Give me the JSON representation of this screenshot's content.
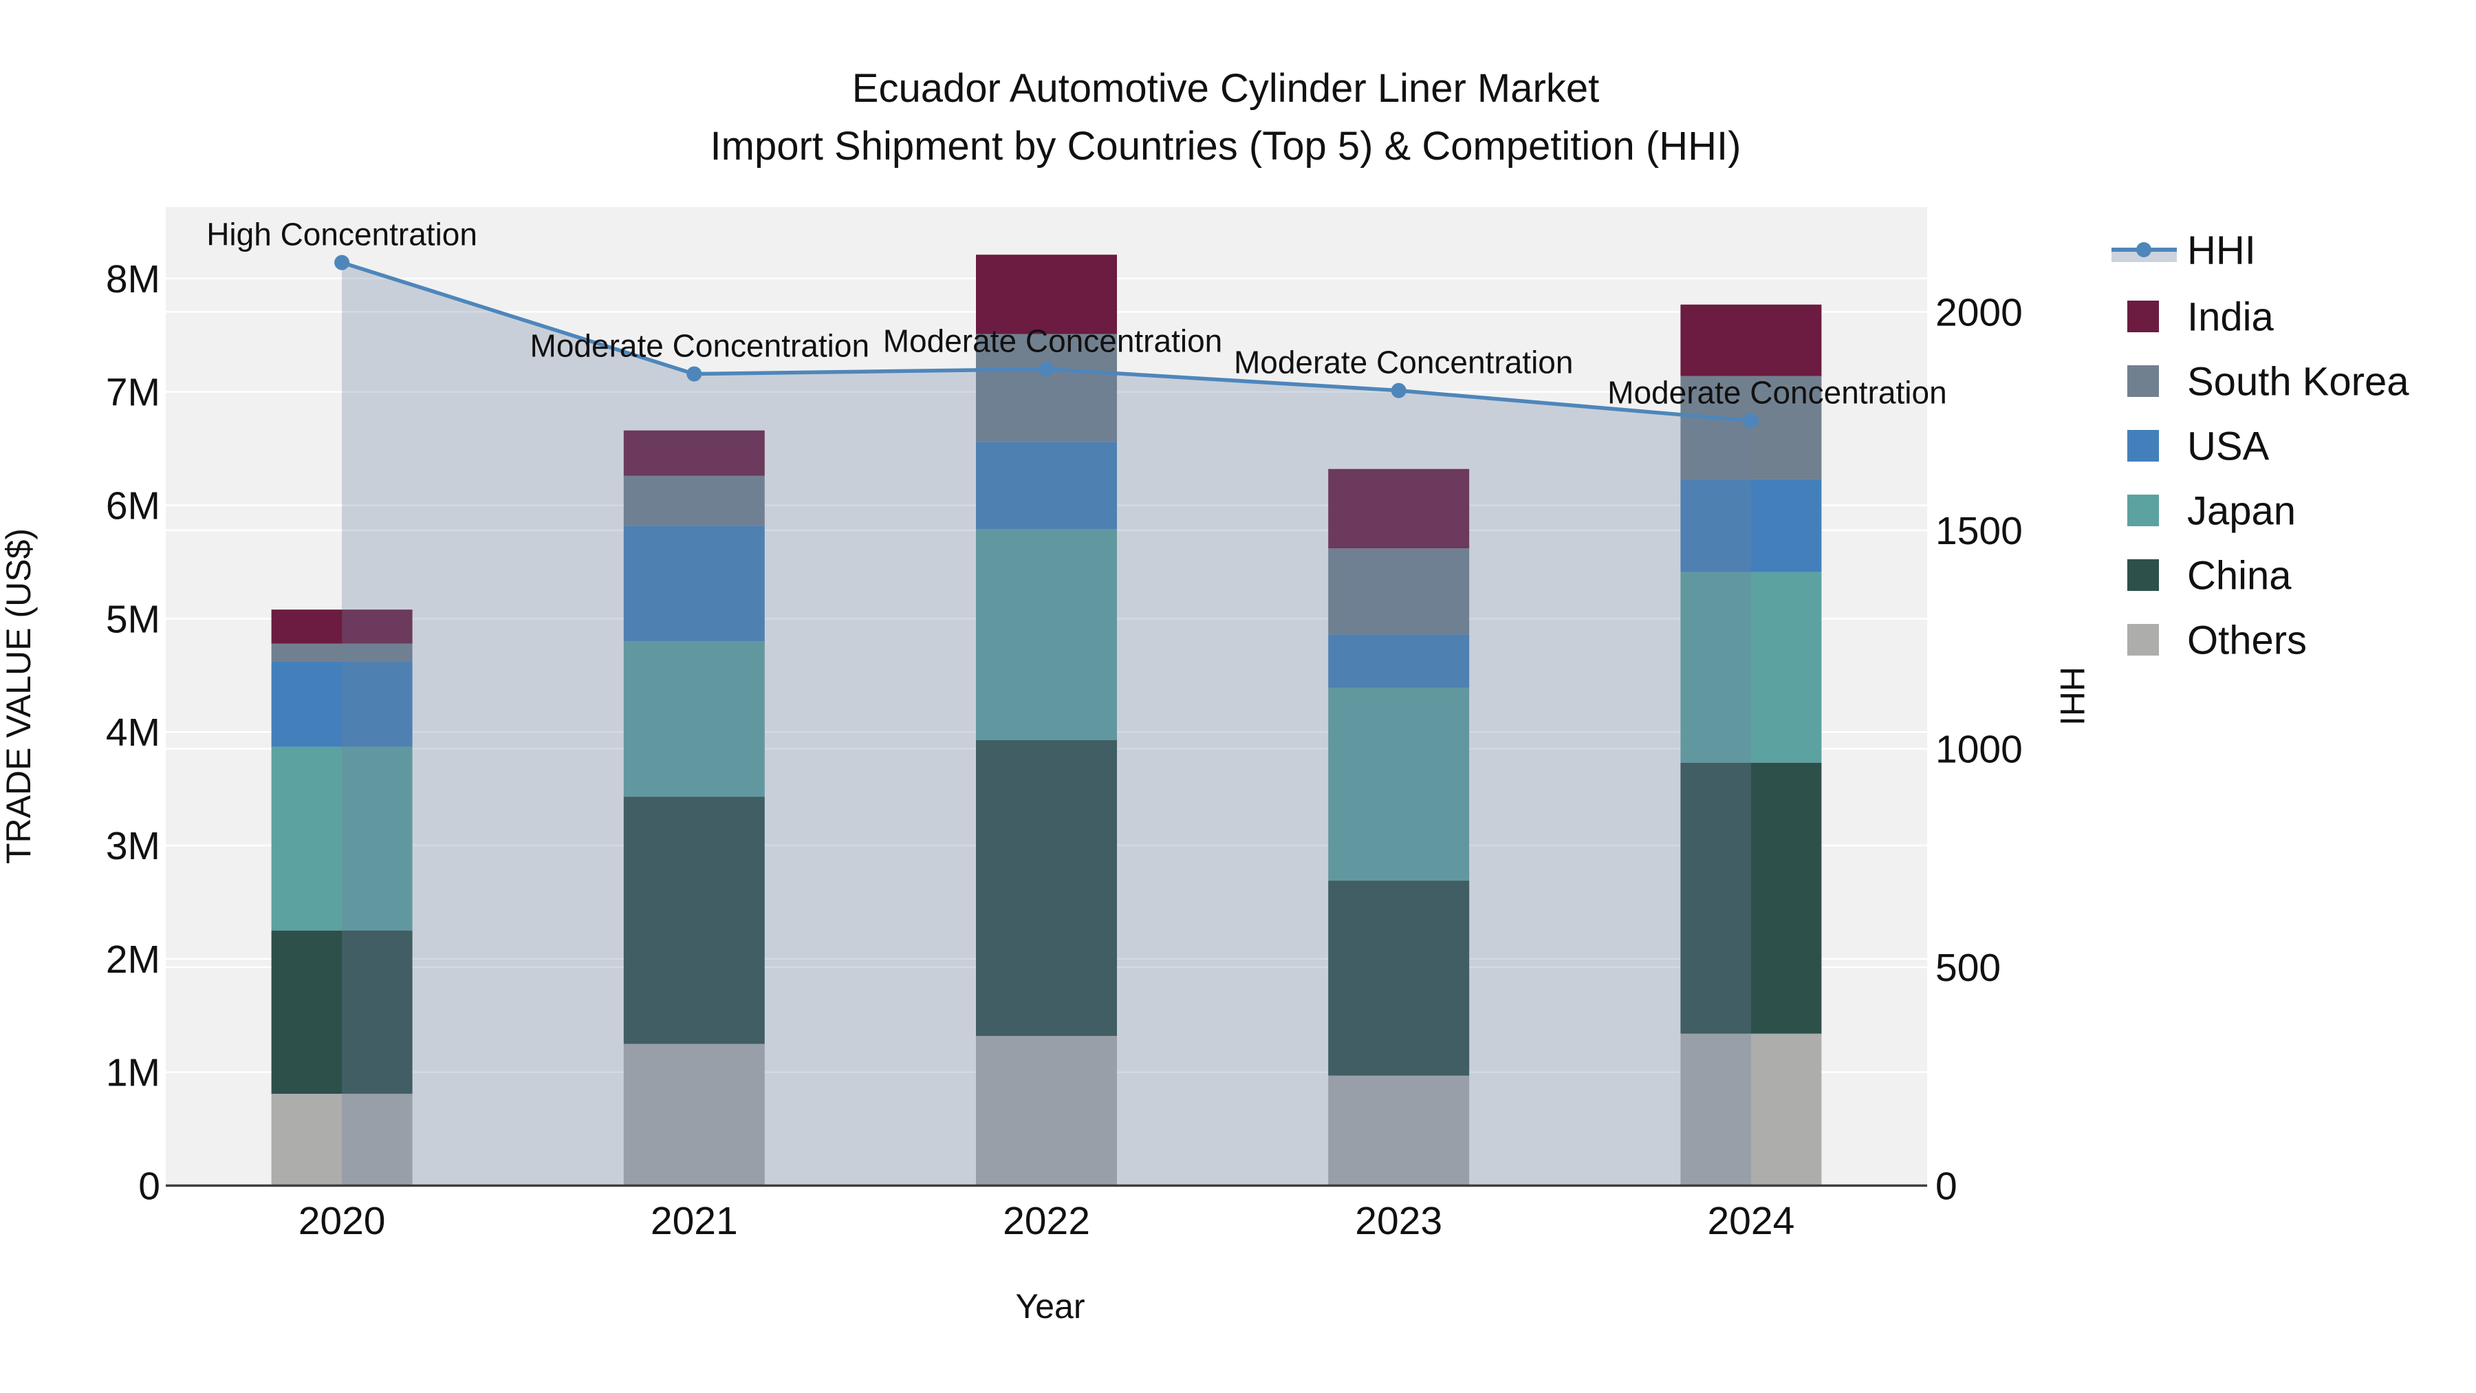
{
  "title": {
    "line1": "Ecuador Automotive Cylinder Liner Market",
    "line2": "Import Shipment by Countries (Top 5) & Competition (HHI)"
  },
  "axes": {
    "x": {
      "title": "Year",
      "ticks": [
        "2020",
        "2021",
        "2022",
        "2023",
        "2024"
      ]
    },
    "y_left": {
      "title": "TRADE VALUE (US$)",
      "ticks": [
        "0",
        "1M",
        "2M",
        "3M",
        "4M",
        "5M",
        "6M",
        "7M",
        "8M"
      ]
    },
    "y_right": {
      "title": "HHI",
      "ticks": [
        "0",
        "500",
        "1000",
        "1500",
        "2000"
      ]
    }
  },
  "legend": {
    "line_item_label": "HHI"
  },
  "colors": {
    "figure_bg": "#FFFFFF",
    "plot_bg": "#F1F1F1",
    "grid": "#FFFFFF",
    "axis_line": "#3F3F3F",
    "text": "#111111",
    "hhi_line": "#4E86BB",
    "hhi_fill": "rgba(110,130,160,0.30)",
    "hhi_fill_legend": "#CCD3DC"
  },
  "chart_data": {
    "type": "bar",
    "stacked": true,
    "title": "Ecuador Automotive Cylinder Liner Market",
    "subtitle": "Import Shipment by Countries (Top 5) & Competition (HHI)",
    "xlabel": "Year",
    "ylabel_left": "TRADE VALUE (US$)",
    "ylabel_right": "HHI",
    "categories": [
      "2020",
      "2021",
      "2022",
      "2023",
      "2024"
    ],
    "values_unit": "million US$ (trade value, left axis)",
    "series": [
      {
        "name": "India",
        "color": "#6B1C40",
        "values": [
          0.3,
          0.4,
          0.7,
          0.7,
          0.63
        ]
      },
      {
        "name": "South Korea",
        "color": "#71808F",
        "values": [
          0.16,
          0.44,
          0.95,
          0.76,
          0.91
        ]
      },
      {
        "name": "USA",
        "color": "#4380BB",
        "values": [
          0.75,
          1.02,
          0.77,
          0.47,
          0.82
        ]
      },
      {
        "name": "Japan",
        "color": "#5CA2A0",
        "values": [
          1.62,
          1.37,
          1.86,
          1.7,
          1.68
        ]
      },
      {
        "name": "China",
        "color": "#2D504B",
        "values": [
          1.44,
          2.18,
          2.61,
          1.72,
          2.39
        ]
      },
      {
        "name": "Others",
        "color": "#ADADAC",
        "values": [
          0.81,
          1.25,
          1.32,
          0.97,
          1.34
        ]
      }
    ],
    "stack_totals": [
      5.08,
      6.66,
      8.21,
      6.32,
      7.77
    ],
    "line_series": {
      "name": "HHI",
      "axis": "right",
      "values": [
        2113,
        1858,
        1869,
        1820,
        1751
      ],
      "color": "#4E86BB",
      "fill_to_zero": true
    },
    "annotations": [
      {
        "x": "2020",
        "text": "High Concentration"
      },
      {
        "x": "2021",
        "text": "Moderate Concentration"
      },
      {
        "x": "2022",
        "text": "Moderate Concentration"
      },
      {
        "x": "2023",
        "text": "Moderate Concentration"
      },
      {
        "x": "2024",
        "text": "Moderate Concentration"
      }
    ],
    "y_left_range": [
      0,
      8630000
    ],
    "y_right_range": [
      0,
      2240
    ],
    "grid": true,
    "legend_position": "right"
  }
}
